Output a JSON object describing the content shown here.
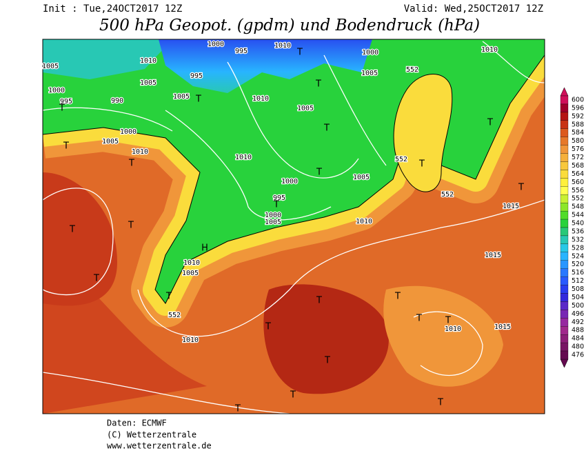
{
  "header": {
    "init": "Init : Tue,24OCT2017 12Z",
    "valid": "Valid: Wed,25OCT2017 12Z",
    "title": "500 hPa Geopot. (gpdm) und Bodendruck (hPa)"
  },
  "legend": {
    "levels": [
      600,
      596,
      592,
      588,
      584,
      580,
      576,
      572,
      568,
      564,
      560,
      556,
      552,
      548,
      544,
      540,
      536,
      532,
      528,
      524,
      520,
      516,
      512,
      508,
      504,
      500,
      496,
      492,
      488,
      484,
      480,
      476
    ],
    "colors": [
      "#d0105a",
      "#a0002a",
      "#b41414",
      "#c83214",
      "#dc5a1e",
      "#e6782a",
      "#f0963a",
      "#f5b03c",
      "#f8c83c",
      "#fadc3c",
      "#fff03c",
      "#ffff50",
      "#c8f032",
      "#8ce628",
      "#50dc28",
      "#28d23c",
      "#28c878",
      "#28c8b4",
      "#28c8e6",
      "#28b4ff",
      "#2896ff",
      "#2878ff",
      "#285aff",
      "#283cf0",
      "#3228dc",
      "#5a28c8",
      "#7828b4",
      "#9628a0",
      "#a0288c",
      "#8c1e78",
      "#781464",
      "#640a50"
    ]
  },
  "map_labels": [
    "1000",
    "995",
    "1010",
    "1005",
    "1010",
    "995",
    "1005",
    "1000",
    "995",
    "990",
    "1005",
    "1005",
    "1010",
    "1000",
    "1005",
    "1010",
    "1010",
    "1000",
    "995",
    "1000",
    "1005",
    "1005",
    "1010",
    "1010",
    "1005",
    "552",
    "1010",
    "552",
    "552",
    "552",
    "1015",
    "1015",
    "1010",
    "1015",
    "1010",
    "1000",
    "1005",
    "T",
    "T",
    "T",
    "T",
    "T",
    "T",
    "T",
    "T",
    "T",
    "T",
    "T",
    "T",
    "T",
    "T",
    "T",
    "T",
    "T",
    "T",
    "T",
    "T",
    "T",
    "T",
    "T",
    "T",
    "T",
    "H"
  ],
  "footer": {
    "source": "Daten: ECMWF",
    "copyright": "(C) Wetterzentrale",
    "url": "www.wetterzentrale.de"
  }
}
